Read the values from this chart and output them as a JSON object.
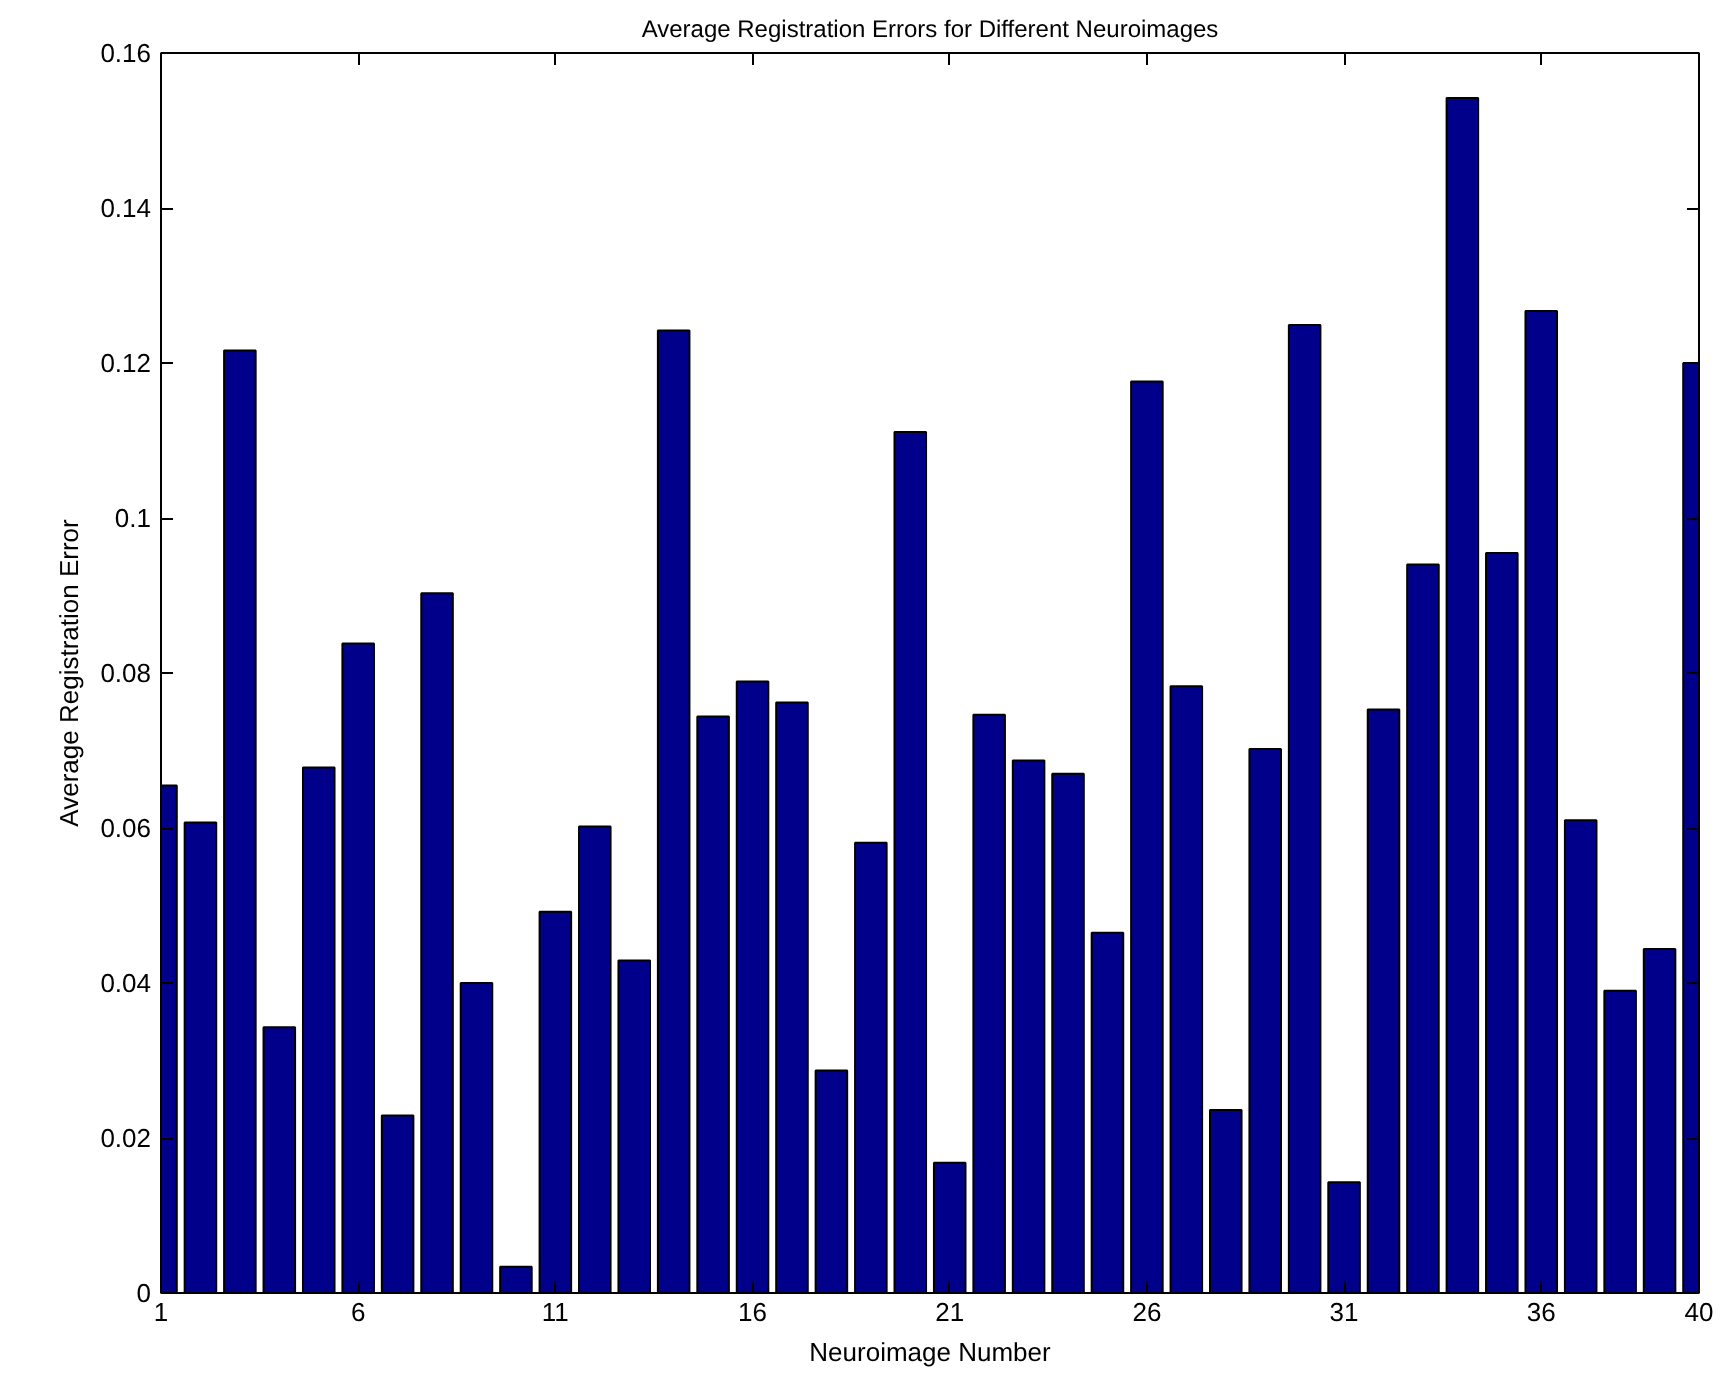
{
  "chart_data": {
    "type": "bar",
    "title": "Average Registration Errors for Different Neuroimages",
    "xlabel": "Neuroimage Number",
    "ylabel": "Average Registration Error",
    "x": [
      1,
      2,
      3,
      4,
      5,
      6,
      7,
      8,
      9,
      10,
      11,
      12,
      13,
      14,
      15,
      16,
      17,
      18,
      19,
      20,
      21,
      22,
      23,
      24,
      25,
      26,
      27,
      28,
      29,
      30,
      31,
      32,
      33,
      34,
      35,
      36,
      37,
      38,
      39,
      40
    ],
    "values": [
      0.0655,
      0.0607,
      0.1216,
      0.0343,
      0.0678,
      0.0838,
      0.0229,
      0.0903,
      0.04,
      0.0034,
      0.0492,
      0.0602,
      0.0429,
      0.1242,
      0.0744,
      0.0789,
      0.0762,
      0.0287,
      0.0581,
      0.1111,
      0.0168,
      0.0746,
      0.0687,
      0.067,
      0.0465,
      0.1176,
      0.0783,
      0.0236,
      0.0702,
      0.1249,
      0.0143,
      0.0753,
      0.094,
      0.1542,
      0.0955,
      0.1267,
      0.061,
      0.039,
      0.0444,
      0.12
    ],
    "color": "#00008b",
    "xlim": [
      1,
      40
    ],
    "xticks": [
      1,
      6,
      11,
      16,
      21,
      26,
      31,
      36,
      40
    ],
    "ylim": [
      0,
      0.16
    ],
    "yticks": [
      0,
      0.02,
      0.04,
      0.06,
      0.08,
      0.1,
      0.12,
      0.14,
      0.16
    ],
    "grid": false
  }
}
